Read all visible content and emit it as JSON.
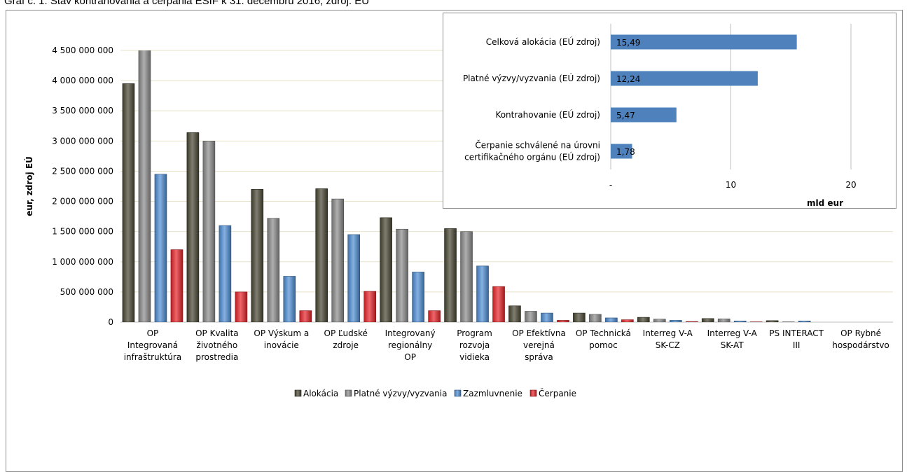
{
  "caption": "Graf č. 1: Stav kontrahovania a čerpania EŠIF k 31. decembru 2016, zdroj: EÚ",
  "chart_data": [
    {
      "type": "bar",
      "title": "",
      "ylabel": "eur, zdroj EÚ",
      "xlabel": "",
      "ylim": [
        0,
        4500000000
      ],
      "yticks": [
        0,
        500000000,
        1000000000,
        1500000000,
        2000000000,
        2500000000,
        3000000000,
        3500000000,
        4000000000,
        4500000000
      ],
      "ytick_labels": [
        "0",
        "500 000 000",
        "1 000 000 000",
        "1 500 000 000",
        "2 000 000 000",
        "2 500 000 000",
        "3 000 000 000",
        "3 500 000 000",
        "4 000 000 000",
        "4 500 000 000"
      ],
      "categories": [
        [
          "OP",
          "Integrovaná",
          "infraštruktúra"
        ],
        [
          "OP Kvalita",
          "životného",
          "prostredia"
        ],
        [
          "OP Výskum a",
          "inovácie"
        ],
        [
          "OP Ľudské",
          "zdroje"
        ],
        [
          "Integrovaný",
          "regionálny",
          "OP"
        ],
        [
          "Program",
          "rozvoja",
          "vidieka"
        ],
        [
          "OP Efektívna",
          "verejná",
          "správa"
        ],
        [
          "OP Technická",
          "pomoc"
        ],
        [
          "Interreg V-A",
          "SK-CZ"
        ],
        [
          "Interreg V-A",
          "SK-AT"
        ],
        [
          "PS INTERACT",
          "III"
        ],
        [
          "OP Rybné",
          "hospodárstvo"
        ]
      ],
      "series": [
        {
          "name": "Alokácia",
          "color": "#4a4733",
          "values": [
            3950000000,
            3140000000,
            2200000000,
            2210000000,
            1730000000,
            1550000000,
            270000000,
            150000000,
            80000000,
            60000000,
            25000000,
            0
          ]
        },
        {
          "name": "Platné výzvy/vyzvania",
          "color": "#8c8c8c",
          "values": [
            4600000000,
            3000000000,
            1720000000,
            2040000000,
            1540000000,
            1500000000,
            180000000,
            130000000,
            50000000,
            55000000,
            5000000,
            0
          ]
        },
        {
          "name": "Zazmluvnenie",
          "color": "#4f8fd6",
          "values": [
            2450000000,
            1600000000,
            760000000,
            1450000000,
            830000000,
            930000000,
            150000000,
            70000000,
            30000000,
            20000000,
            20000000,
            0
          ]
        },
        {
          "name": "Čerpanie",
          "color": "#e8252a",
          "values": [
            1200000000,
            500000000,
            190000000,
            510000000,
            190000000,
            590000000,
            30000000,
            40000000,
            10000000,
            5000000,
            0,
            0
          ]
        }
      ],
      "legend_position": "bottom",
      "grid": true
    },
    {
      "type": "bar",
      "orientation": "horizontal",
      "title": "",
      "xlabel": "mld eur",
      "xlim": [
        0,
        20
      ],
      "xticks": [
        0,
        10,
        20
      ],
      "xtick_labels": [
        "-",
        "10",
        "20"
      ],
      "categories": [
        [
          "Celková alokácia  (EÚ zdroj)"
        ],
        [
          "Platné výzvy/vyzvania (EÚ zdroj)"
        ],
        [
          "Kontrahovanie (EÚ zdroj)"
        ],
        [
          "Čerpanie schválené na úrovni",
          "certifikačného orgánu (EÚ zdroj)"
        ]
      ],
      "values": [
        15.49,
        12.24,
        5.47,
        1.78
      ],
      "data_labels": [
        "15,49",
        "12,24",
        "5,47",
        "1,78"
      ],
      "color": "#4f81bd",
      "grid": true
    }
  ]
}
